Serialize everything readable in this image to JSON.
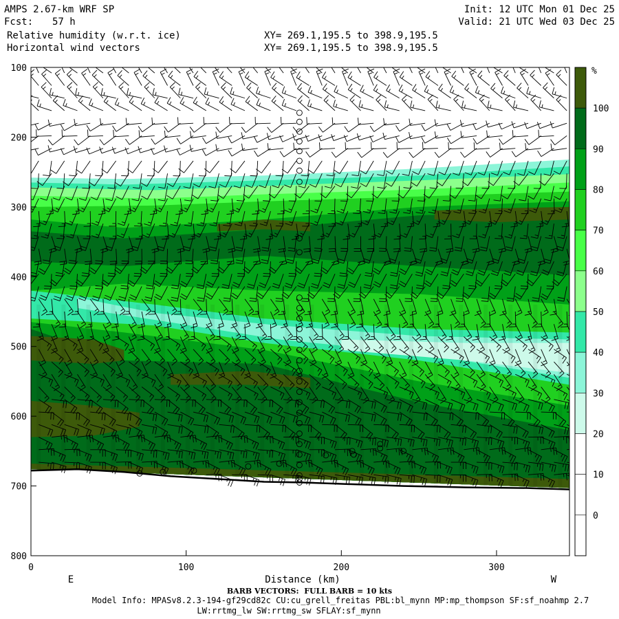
{
  "header": {
    "model": "AMPS 2.67-km WRF SP",
    "fcst_label": "Fcst:",
    "fcst_value": "57 h",
    "field1": "Relative humidity (w.r.t. ice)",
    "field2": "Horizontal wind vectors",
    "xy1": "XY= 269.1,195.5 to 398.9,195.5",
    "xy2": "XY= 269.1,195.5 to 398.9,195.5",
    "init": "Init: 12 UTC Mon 01 Dec 25",
    "valid": "Valid: 21 UTC Wed 03 Dec 25"
  },
  "footer": {
    "barb_note": "BARB VECTORS:  FULL BARB = 10 kts",
    "model_info": "Model Info: MPASv8.2.3-194-gf29cd82c CU:cu_grell_freitas PBL:bl_mynn MP:mp_thompson SF:sf_noahmp 2.7",
    "model_info2": "LW:rrtmg_lw SW:rrtmg_sw SFLAY:sf_mynn"
  },
  "chart_data": {
    "type": "heatmap",
    "xlabel": "Distance (km)",
    "ylabel": "",
    "x_ticks": [
      0,
      100,
      200,
      300
    ],
    "y_ticks": [
      100,
      200,
      300,
      400,
      500,
      600,
      700,
      800
    ],
    "xlim": [
      0,
      347
    ],
    "ylim": [
      100,
      800
    ],
    "side_labels": {
      "left": "E",
      "right": "W"
    },
    "colorbar": {
      "unit": "%",
      "labels": [
        "100",
        "90",
        "80",
        "70",
        "60",
        "50",
        "40",
        "30",
        "20",
        "10",
        "0"
      ],
      "colors": [
        "#3d5a0a",
        "#006b1a",
        "#00a018",
        "#20d020",
        "#48ff48",
        "#8cff8c",
        "#33e8a8",
        "#8cf5d8",
        "#cdfaea",
        "#ffffff",
        "#ffffff",
        "#ffffff"
      ]
    },
    "terrain_km_hpa": [
      [
        0,
        678
      ],
      [
        30,
        676
      ],
      [
        60,
        680
      ],
      [
        90,
        686
      ],
      [
        120,
        690
      ],
      [
        150,
        694
      ],
      [
        175,
        695
      ],
      [
        200,
        697
      ],
      [
        240,
        700
      ],
      [
        280,
        702
      ],
      [
        320,
        703
      ],
      [
        347,
        705
      ]
    ],
    "rh_layers": [
      {
        "rh": 30,
        "top": [
          [
            0,
            258
          ],
          [
            60,
            260
          ],
          [
            150,
            255
          ],
          [
            250,
            245
          ],
          [
            347,
            232
          ]
        ],
        "bottom": [
          [
            0,
            676
          ],
          [
            347,
            703
          ]
        ]
      },
      {
        "rh": 40,
        "top": [
          [
            0,
            265
          ],
          [
            60,
            268
          ],
          [
            150,
            262
          ],
          [
            250,
            255
          ],
          [
            347,
            242
          ]
        ],
        "bottom": [
          [
            0,
            676
          ],
          [
            347,
            703
          ]
        ]
      },
      {
        "rh": 50,
        "top": [
          [
            0,
            272
          ],
          [
            80,
            276
          ],
          [
            150,
            270
          ],
          [
            250,
            262
          ],
          [
            347,
            253
          ]
        ],
        "bottom": [
          [
            0,
            676
          ],
          [
            347,
            703
          ]
        ]
      },
      {
        "rh": 60,
        "top": [
          [
            0,
            284
          ],
          [
            80,
            288
          ],
          [
            150,
            282
          ],
          [
            250,
            275
          ],
          [
            347,
            265
          ]
        ],
        "bottom": [
          [
            0,
            676
          ],
          [
            347,
            703
          ]
        ]
      },
      {
        "rh": 70,
        "top": [
          [
            0,
            300
          ],
          [
            80,
            298
          ],
          [
            150,
            292
          ],
          [
            250,
            285
          ],
          [
            347,
            278
          ]
        ],
        "bottom": [
          [
            0,
            676
          ],
          [
            347,
            703
          ]
        ]
      },
      {
        "rh": 80,
        "top": [
          [
            0,
            318
          ],
          [
            60,
            330
          ],
          [
            150,
            318
          ],
          [
            250,
            300
          ],
          [
            347,
            292
          ]
        ],
        "bottom": [
          [
            0,
            420
          ],
          [
            60,
            410
          ],
          [
            150,
            420
          ],
          [
            250,
            425
          ],
          [
            347,
            440
          ]
        ]
      },
      {
        "rh": 90,
        "top": [
          [
            0,
            335
          ],
          [
            60,
            345
          ],
          [
            150,
            332
          ],
          [
            250,
            312
          ],
          [
            347,
            305
          ]
        ],
        "bottom": [
          [
            0,
            378
          ],
          [
            60,
            385
          ],
          [
            150,
            370
          ],
          [
            250,
            385
          ],
          [
            347,
            398
          ]
        ]
      },
      {
        "rh": 100,
        "top": [
          [
            120,
            325
          ],
          [
            150,
            318
          ],
          [
            180,
            322
          ]
        ],
        "bottom": [
          [
            120,
            335
          ],
          [
            150,
            332
          ],
          [
            180,
            335
          ]
        ]
      },
      {
        "rh": 100,
        "top": [
          [
            260,
            305
          ],
          [
            300,
            302
          ],
          [
            347,
            300
          ]
        ],
        "bottom": [
          [
            260,
            318
          ],
          [
            300,
            322
          ],
          [
            347,
            318
          ]
        ]
      }
    ],
    "dry_bands": [
      {
        "rh": 40,
        "top": [
          [
            0,
            420
          ],
          [
            80,
            440
          ],
          [
            150,
            460
          ],
          [
            250,
            475
          ],
          [
            347,
            480
          ]
        ],
        "bottom": [
          [
            0,
            460
          ],
          [
            80,
            470
          ],
          [
            150,
            495
          ],
          [
            250,
            520
          ],
          [
            347,
            555
          ]
        ]
      },
      {
        "rh": 30,
        "top": [
          [
            30,
            430
          ],
          [
            80,
            452
          ],
          [
            160,
            470
          ],
          [
            250,
            485
          ],
          [
            347,
            490
          ]
        ],
        "bottom": [
          [
            30,
            445
          ],
          [
            80,
            462
          ],
          [
            160,
            490
          ],
          [
            250,
            510
          ],
          [
            347,
            545
          ]
        ]
      },
      {
        "rh": 20,
        "top": [
          [
            200,
            490
          ],
          [
            280,
            495
          ],
          [
            347,
            495
          ]
        ],
        "bottom": [
          [
            200,
            505
          ],
          [
            280,
            520
          ],
          [
            347,
            538
          ]
        ]
      }
    ],
    "moist_lower": [
      {
        "rh": 80,
        "top": [
          [
            0,
            465
          ],
          [
            60,
            480
          ],
          [
            150,
            505
          ],
          [
            250,
            550
          ],
          [
            347,
            585
          ]
        ],
        "bottom": [
          [
            0,
            676
          ],
          [
            347,
            703
          ]
        ]
      },
      {
        "rh": 90,
        "top": [
          [
            0,
            475
          ],
          [
            60,
            520
          ],
          [
            150,
            525
          ],
          [
            250,
            580
          ],
          [
            347,
            620
          ]
        ],
        "bottom": [
          [
            0,
            676
          ],
          [
            347,
            703
          ]
        ]
      },
      {
        "rh": 100,
        "top": [
          [
            0,
            485
          ],
          [
            40,
            490
          ],
          [
            60,
            505
          ]
        ],
        "bottom": [
          [
            0,
            520
          ],
          [
            40,
            525
          ],
          [
            60,
            520
          ]
        ]
      },
      {
        "rh": 100,
        "top": [
          [
            90,
            540
          ],
          [
            140,
            535
          ],
          [
            180,
            545
          ]
        ],
        "bottom": [
          [
            90,
            555
          ],
          [
            140,
            555
          ],
          [
            180,
            560
          ]
        ]
      },
      {
        "rh": 100,
        "top": [
          [
            0,
            578
          ],
          [
            40,
            585
          ],
          [
            70,
            595
          ]
        ],
        "bottom": [
          [
            0,
            630
          ],
          [
            40,
            628
          ],
          [
            70,
            615
          ]
        ]
      },
      {
        "rh": 100,
        "top": [
          [
            0,
            668
          ],
          [
            347,
            690
          ]
        ],
        "bottom": [
          [
            0,
            676
          ],
          [
            347,
            703
          ]
        ]
      }
    ],
    "column_circles_km": 173,
    "column_circles_hpa": [
      165,
      178,
      192,
      206,
      220,
      234,
      248,
      264,
      345,
      365,
      430,
      445,
      460,
      475,
      490,
      505,
      520,
      535,
      550,
      565,
      580,
      595,
      610,
      625,
      640,
      655,
      670,
      685,
      690,
      695
    ],
    "extra_circles": [
      [
        190,
        656
      ],
      [
        207,
        650
      ],
      [
        208,
        655
      ],
      [
        225,
        640
      ],
      [
        225,
        646
      ],
      [
        240,
        650
      ],
      [
        160,
        668
      ],
      [
        140,
        672
      ],
      [
        105,
        678
      ],
      [
        85,
        680
      ],
      [
        70,
        682
      ]
    ],
    "wind_barbs": [
      {
        "p": 110,
        "dir": 320,
        "spd": 15
      },
      {
        "p": 150,
        "dir": 300,
        "spd": 15
      },
      {
        "p": 200,
        "dir": 250,
        "spd": 10
      },
      {
        "p": 250,
        "dir": 200,
        "spd": 10
      },
      {
        "p": 300,
        "dir": 190,
        "spd": 15
      },
      {
        "p": 350,
        "dir": 180,
        "spd": 20
      },
      {
        "p": 400,
        "dir": 200,
        "spd": 20
      },
      {
        "p": 450,
        "dir": 160,
        "spd": 15
      },
      {
        "p": 500,
        "dir": 140,
        "spd": 15
      },
      {
        "p": 550,
        "dir": 130,
        "spd": 15
      },
      {
        "p": 600,
        "dir": 110,
        "spd": 20
      },
      {
        "p": 650,
        "dir": 100,
        "spd": 25
      }
    ]
  }
}
